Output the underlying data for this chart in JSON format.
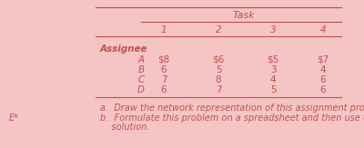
{
  "bg_color": "#f5c5c5",
  "title": "Task",
  "col_headers": [
    "1",
    "2",
    "3",
    "4"
  ],
  "row_header": "Assignee",
  "assignees": [
    "A",
    "B",
    "C",
    "D"
  ],
  "values": [
    [
      "$8",
      "$6",
      "$5",
      "$7"
    ],
    [
      "6",
      "5",
      "3",
      "4"
    ],
    [
      "7",
      "8",
      "4",
      "6"
    ],
    [
      "6",
      "7",
      "5",
      "6"
    ]
  ],
  "note_a": "a.  Draw the network representation of this assignment problem.",
  "note_b": "b.  Formulate this problem on a spreadsheet and then use the Excel Solver to obtain an optimal",
  "note_b2": "    solution.",
  "note_label": "E*",
  "tc": "#c0504d",
  "fs": 7.5
}
